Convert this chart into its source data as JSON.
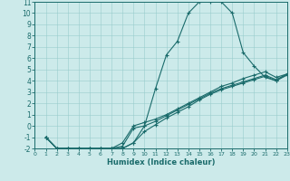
{
  "xlabel": "Humidex (Indice chaleur)",
  "background_color": "#cceaea",
  "grid_color": "#99cccc",
  "line_color": "#1a6b6b",
  "xlim": [
    0,
    23
  ],
  "ylim": [
    -2,
    11
  ],
  "xticks": [
    0,
    1,
    2,
    3,
    4,
    5,
    6,
    7,
    8,
    9,
    10,
    11,
    12,
    13,
    14,
    15,
    16,
    17,
    18,
    19,
    20,
    21,
    22,
    23
  ],
  "yticks": [
    -2,
    -1,
    0,
    1,
    2,
    3,
    4,
    5,
    6,
    7,
    8,
    9,
    10,
    11
  ],
  "lines": [
    {
      "x": [
        1,
        2,
        3,
        4,
        5,
        6,
        7,
        8,
        9,
        10,
        11,
        12,
        13,
        14,
        15,
        16,
        17,
        18,
        19,
        20,
        21,
        22,
        23
      ],
      "y": [
        -1,
        -2,
        -2,
        -2,
        -2,
        -2,
        -2,
        -2,
        -1.5,
        0,
        3.3,
        6.3,
        7.5,
        10,
        11,
        11,
        11,
        10,
        6.5,
        5.3,
        4.3,
        4.0,
        4.5
      ]
    },
    {
      "x": [
        1,
        2,
        3,
        4,
        5,
        6,
        7,
        8,
        9,
        10,
        11,
        12,
        13,
        14,
        15,
        16,
        17,
        18,
        19,
        20,
        21,
        22,
        23
      ],
      "y": [
        -1,
        -2,
        -2,
        -2,
        -2,
        -2,
        -2,
        -1.5,
        0.0,
        0.3,
        0.6,
        1.0,
        1.5,
        2.0,
        2.5,
        3.0,
        3.5,
        3.8,
        4.2,
        4.5,
        4.8,
        4.3,
        4.6
      ]
    },
    {
      "x": [
        1,
        2,
        3,
        4,
        5,
        6,
        7,
        8,
        9,
        10,
        11,
        12,
        13,
        14,
        15,
        16,
        17,
        18,
        19,
        20,
        21,
        22,
        23
      ],
      "y": [
        -1,
        -2,
        -2,
        -2,
        -2,
        -2,
        -2,
        -1.8,
        -0.2,
        0.0,
        0.4,
        0.9,
        1.4,
        1.9,
        2.4,
        2.9,
        3.3,
        3.6,
        3.9,
        4.2,
        4.5,
        4.1,
        4.6
      ]
    },
    {
      "x": [
        1,
        2,
        3,
        4,
        5,
        6,
        7,
        8,
        9,
        10,
        11,
        12,
        13,
        14,
        15,
        16,
        17,
        18,
        19,
        20,
        21,
        22,
        23
      ],
      "y": [
        -1,
        -2,
        -2,
        -2,
        -2,
        -2,
        -2,
        -2.0,
        -1.5,
        -0.5,
        0.1,
        0.7,
        1.2,
        1.7,
        2.3,
        2.8,
        3.2,
        3.5,
        3.8,
        4.1,
        4.4,
        4.0,
        4.6
      ]
    }
  ],
  "xlabel_fontsize": 6,
  "tick_fontsize_x": 4.5,
  "tick_fontsize_y": 5.5
}
